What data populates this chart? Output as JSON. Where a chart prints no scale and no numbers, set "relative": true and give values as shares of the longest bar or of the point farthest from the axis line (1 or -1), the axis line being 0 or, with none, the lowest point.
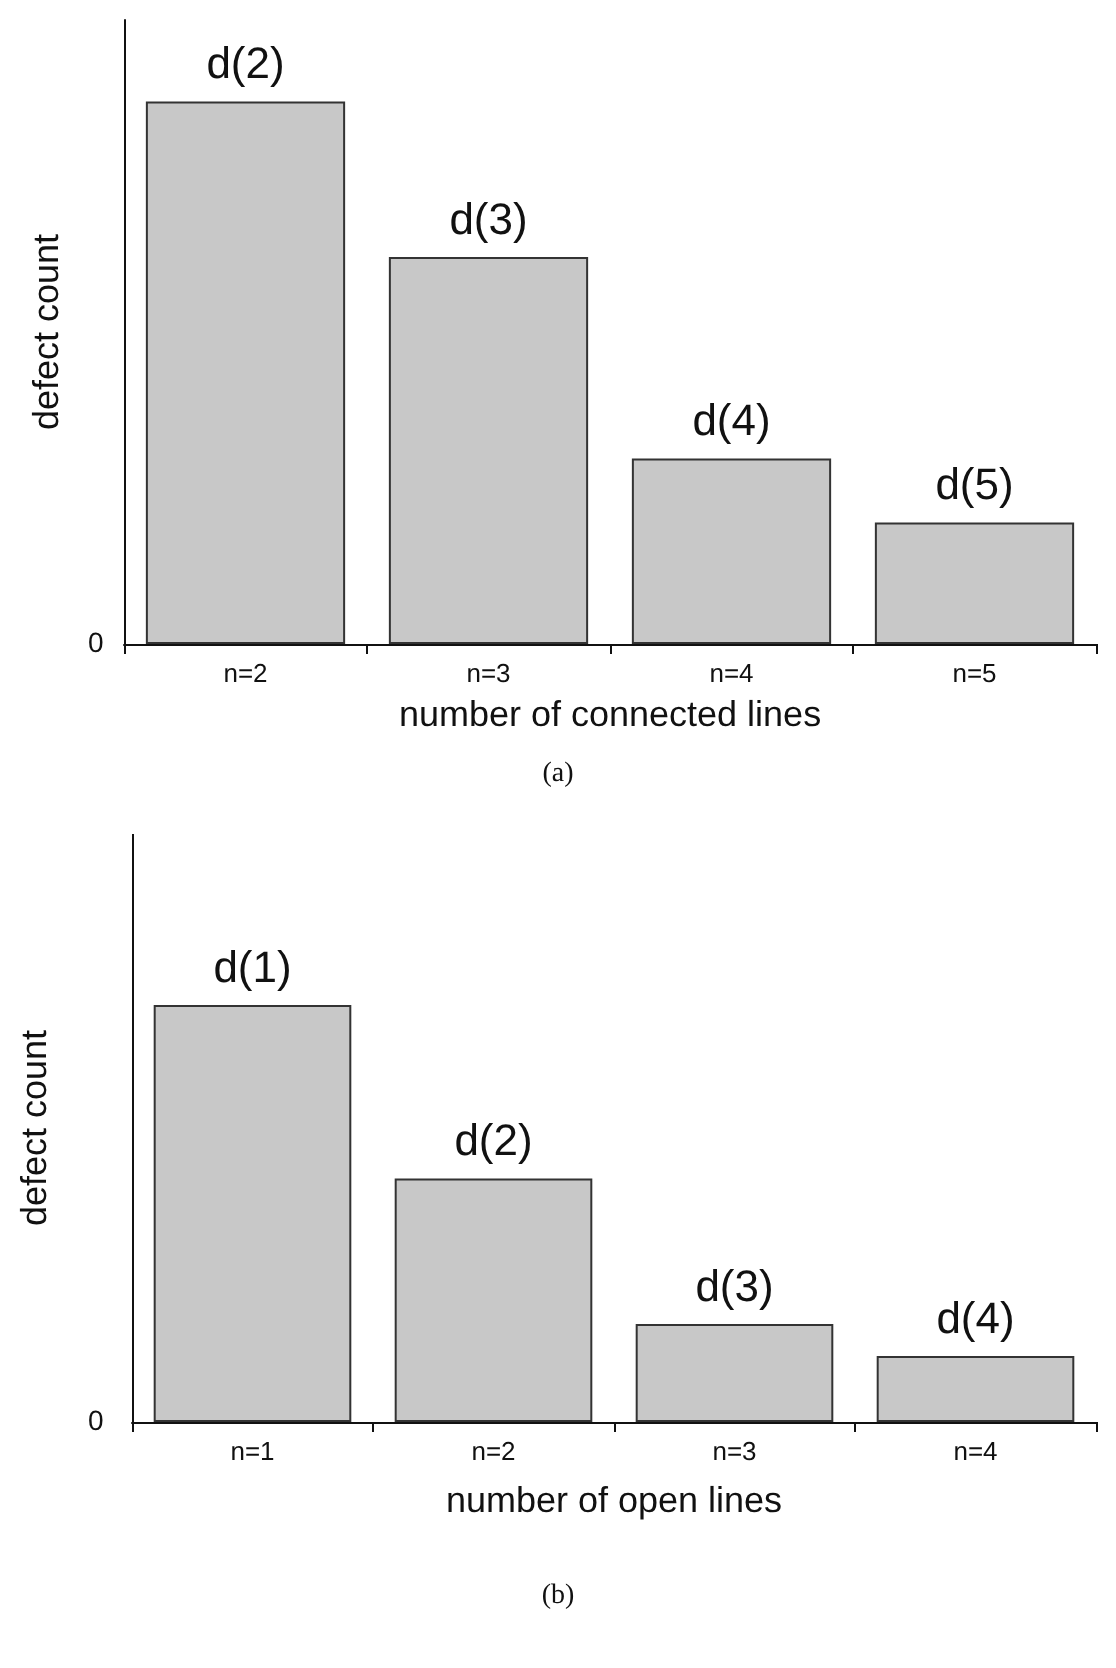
{
  "chart_data": [
    {
      "type": "bar",
      "relative": true,
      "categories": [
        "n=2",
        "n=3",
        "n=4",
        "n=5"
      ],
      "values": [
        1,
        0.713,
        0.342,
        0.224
      ],
      "color": "#c8c8c8",
      "xlabel": "number of connected lines",
      "ylabel": "defect count",
      "grid": false,
      "annotations": [
        {
          "text": "d(2)",
          "x": "n=2",
          "y": 1
        },
        {
          "text": "d(3)",
          "x": "n=3",
          "y": 0.713
        },
        {
          "text": "d(4)",
          "x": "n=4",
          "y": 0.342
        },
        {
          "text": "d(5)",
          "x": "n=5",
          "y": 0.224
        },
        "0",
        "(a)"
      ]
    },
    {
      "type": "bar",
      "relative": true,
      "categories": [
        "n=1",
        "n=2",
        "n=3",
        "n=4"
      ],
      "values": [
        1,
        0.584,
        0.235,
        0.158
      ],
      "color": "#c8c8c8",
      "xlabel": "number of open lines",
      "ylabel": "defect count",
      "grid": false,
      "annotations": [
        {
          "text": "d(1)",
          "x": "n=1",
          "y": 1
        },
        {
          "text": "d(2)",
          "x": "n=2",
          "y": 0.584
        },
        {
          "text": "d(3)",
          "x": "n=3",
          "y": 0.235
        },
        {
          "text": "d(4)",
          "x": "n=4",
          "y": 0.158
        },
        "0",
        "(b)"
      ]
    }
  ]
}
